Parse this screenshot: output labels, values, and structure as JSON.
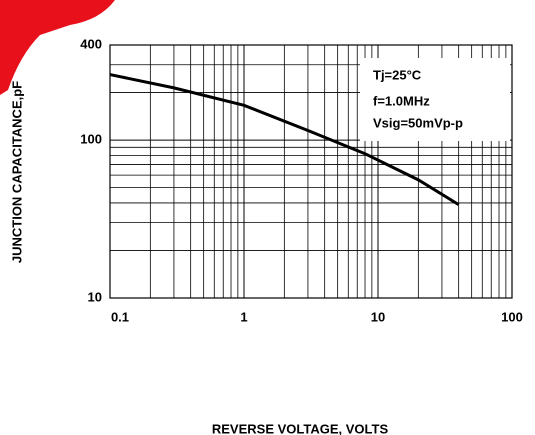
{
  "chart_data": {
    "type": "line",
    "xlabel": "REVERSE VOLTAGE, VOLTS",
    "ylabel": "JUNCTION CAPACITANCE,pF",
    "annotations": [
      "Tj=25°C",
      "f=1.0MHz",
      "Vsig=50mVp-p"
    ],
    "x": [
      0.1,
      0.3,
      1,
      3,
      8,
      20,
      40
    ],
    "series": [
      {
        "color": "#000000",
        "values": [
          260,
          214,
          166,
          115,
          82,
          56,
          39
        ]
      }
    ],
    "xscale": "log",
    "yscale": "log",
    "xlim": [
      0.1,
      100
    ],
    "xticks": [
      0.1,
      1,
      10,
      100
    ],
    "ylim": [
      10,
      400
    ],
    "yticks": [
      10,
      100,
      400
    ],
    "grid": true
  }
}
